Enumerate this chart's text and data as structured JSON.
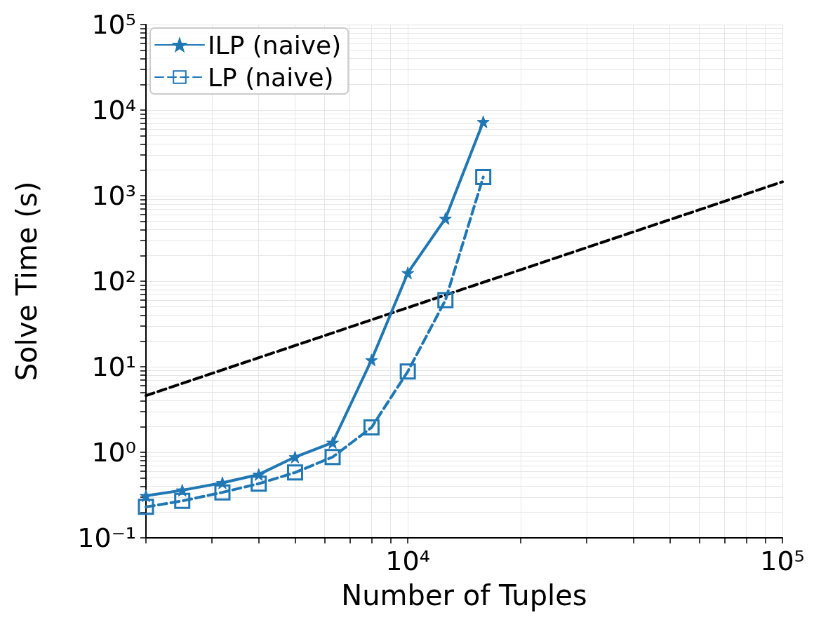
{
  "chart_data": {
    "type": "line",
    "xlabel": "Number of Tuples",
    "ylabel": "Solve Time (s)",
    "log": "xy",
    "grid": true,
    "legend": "top left",
    "xlim": [
      2000,
      100000
    ],
    "xticks": [
      {
        "value": 10000,
        "label": "10⁴"
      },
      {
        "value": 100000,
        "label": "10⁵"
      }
    ],
    "ylim": [
      0.1,
      100000
    ],
    "yticks": [
      {
        "value": 0.1,
        "label": "10⁻¹"
      },
      {
        "value": 1,
        "label": "10⁰"
      },
      {
        "value": 10,
        "label": "10¹"
      },
      {
        "value": 100,
        "label": "10²"
      },
      {
        "value": 1000,
        "label": "10³"
      },
      {
        "value": 10000,
        "label": "10⁴"
      },
      {
        "value": 100000,
        "label": "10⁵"
      }
    ],
    "x": [
      2000,
      2500,
      3200,
      4000,
      5000,
      6300,
      8000,
      10000,
      12600,
      15900
    ],
    "series": [
      {
        "name": "ILP (naive)",
        "color": "#1f77b4",
        "marker": "star",
        "line_style": "solid",
        "values": [
          0.31,
          0.36,
          0.44,
          0.55,
          0.88,
          1.3,
          12,
          125,
          540,
          7300
        ]
      },
      {
        "name": "LP (naive)",
        "color": "#1f77b4",
        "marker": "square",
        "line_style": "dashed",
        "values": [
          0.23,
          0.27,
          0.34,
          0.43,
          0.58,
          0.88,
          1.95,
          8.8,
          60,
          1650
        ]
      },
      {
        "color": "#000000",
        "marker": "none",
        "line_style": "dashed",
        "x": [
          2000,
          100000
        ],
        "values": [
          4.6,
          1450
        ]
      }
    ]
  }
}
